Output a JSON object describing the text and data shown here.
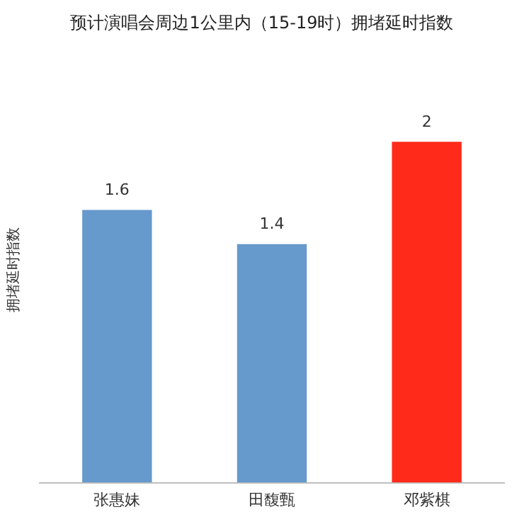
{
  "chart_data": {
    "type": "bar",
    "title": "预计演唱会周边1公里内（15-19时）拥堵延时指数",
    "ylabel": "拥堵延时指数",
    "categories": [
      "张惠妹",
      "田馥甄",
      "邓紫棋"
    ],
    "values": [
      1.6,
      1.4,
      2
    ],
    "colors": [
      "#6699cc",
      "#6699cc",
      "#ff2a1a"
    ],
    "data_labels": true,
    "grid": false,
    "legend": false
  }
}
